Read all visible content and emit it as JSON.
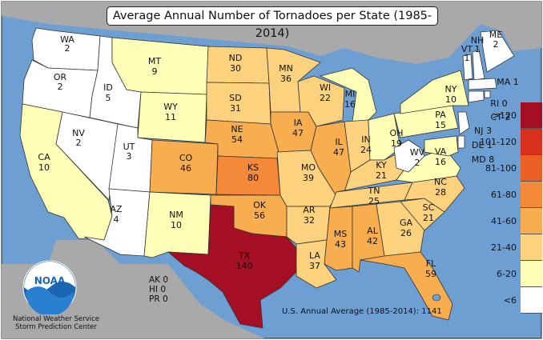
{
  "title": "Average Annual Number of Tornadoes per State (1985-2014)",
  "us_average_text": "U.S. Annual Average (1985-2014): 1141",
  "small_states": [
    {
      "abbr": "AK",
      "value": "0"
    },
    {
      "abbr": "HI",
      "value": "0"
    },
    {
      "abbr": "PR",
      "value": "0"
    }
  ],
  "logo": {
    "name": "NOAA",
    "caption_line1": "National Weather Service",
    "caption_line2": "Storm Prediction Center"
  },
  "legend": [
    {
      "label": ">120",
      "color": "#a50f24"
    },
    {
      "label": "101-120",
      "color": "#d7301f"
    },
    {
      "label": "81-100",
      "color": "#ec5f26"
    },
    {
      "label": "61-80",
      "color": "#f4893a"
    },
    {
      "label": "41-60",
      "color": "#f8ad4e"
    },
    {
      "label": "21-40",
      "color": "#fdd27e"
    },
    {
      "label": "6-20",
      "color": "#ffffb8"
    },
    {
      "label": "<6",
      "color": "#ffffff"
    }
  ],
  "states": {
    "WA": "2",
    "OR": "2",
    "CA": "10",
    "ID": "5",
    "NV": "2",
    "MT": "9",
    "WY": "11",
    "UT": "3",
    "AZ": "4",
    "CO": "46",
    "NM": "10",
    "ND": "30",
    "SD": "31",
    "NE": "54",
    "KS": "80",
    "OK": "56",
    "TX": "140",
    "MN": "36",
    "IA": "47",
    "MO": "39",
    "AR": "32",
    "LA": "37",
    "WI": "22",
    "IL": "47",
    "MI": "16",
    "IN": "24",
    "OH": "19",
    "KY": "21",
    "TN": "25",
    "MS": "43",
    "AL": "42",
    "GA": "26",
    "FL": "59",
    "SC": "21",
    "NC": "28",
    "VA": "16",
    "WV": "2",
    "PA": "15",
    "NY": "10",
    "VT": "1",
    "NH": "1",
    "ME": "2",
    "MA": "1",
    "RI": "0",
    "CT": "2",
    "NJ": "3",
    "DE": "1",
    "MD": "8"
  }
}
